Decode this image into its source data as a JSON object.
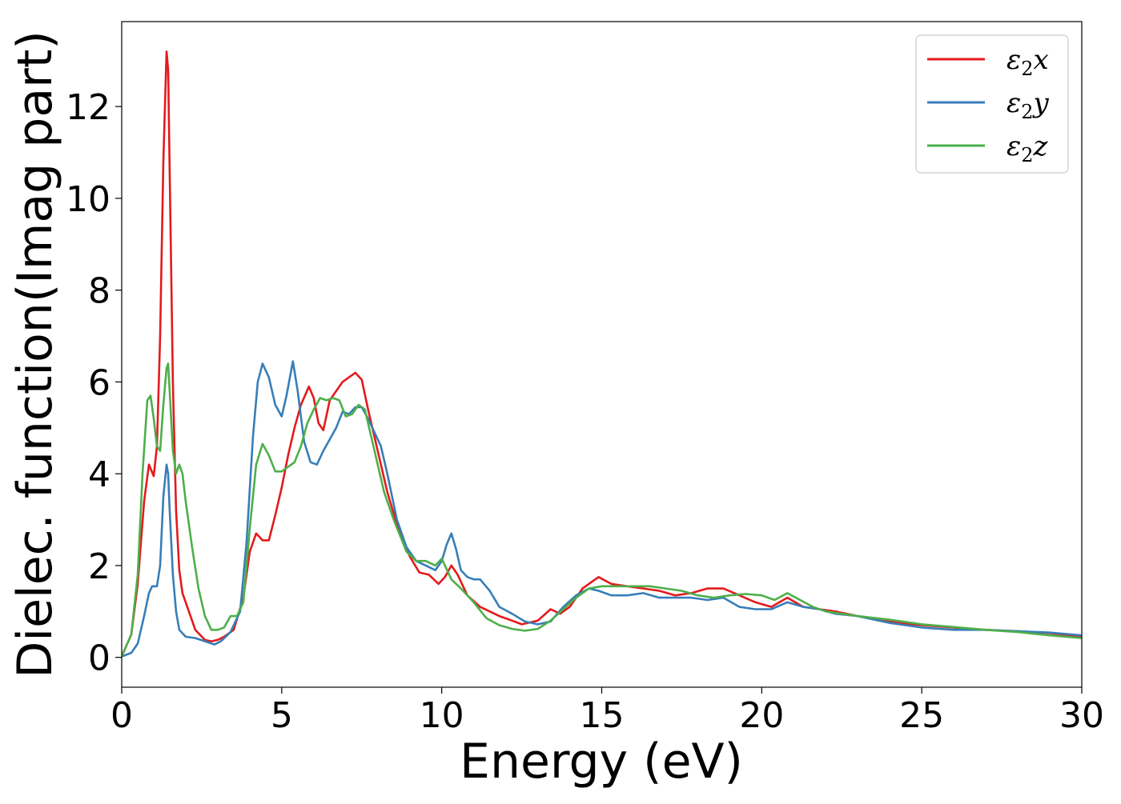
{
  "chart_data": {
    "type": "line",
    "title": "",
    "xlabel": "Energy (eV)",
    "ylabel": "Dielec. function(Imag part)",
    "xlim": [
      0,
      30
    ],
    "ylim": [
      -0.65,
      13.85
    ],
    "xticks": [
      0,
      5,
      10,
      15,
      20,
      25,
      30
    ],
    "yticks": [
      0,
      2,
      4,
      6,
      8,
      10,
      12
    ],
    "grid": false,
    "legend_position": "top-right",
    "series": [
      {
        "name": "ε₂x",
        "legend_base": "ε",
        "legend_sub": "2",
        "legend_suffix": "x",
        "color": "#e41a1c",
        "x": [
          0,
          0.3,
          0.5,
          0.7,
          0.85,
          1.0,
          1.1,
          1.2,
          1.3,
          1.4,
          1.45,
          1.5,
          1.6,
          1.7,
          1.8,
          1.9,
          2.1,
          2.3,
          2.6,
          2.8,
          3.0,
          3.2,
          3.5,
          3.8,
          4.0,
          4.2,
          4.4,
          4.6,
          4.8,
          5.0,
          5.2,
          5.4,
          5.6,
          5.85,
          6.0,
          6.15,
          6.3,
          6.5,
          6.7,
          6.9,
          7.1,
          7.3,
          7.5,
          7.7,
          8.0,
          8.3,
          8.6,
          9.0,
          9.3,
          9.6,
          9.9,
          10.1,
          10.3,
          10.5,
          10.8,
          11.2,
          11.5,
          11.8,
          12.2,
          12.5,
          13.0,
          13.4,
          13.7,
          14.0,
          14.4,
          14.9,
          15.3,
          15.8,
          16.3,
          16.8,
          17.3,
          17.8,
          18.3,
          18.8,
          19.3,
          19.8,
          20.3,
          20.8,
          21.3,
          21.8,
          22.3,
          23.0,
          24.0,
          25.0,
          26.0,
          27.0,
          28.0,
          29.0,
          30.0
        ],
        "y": [
          0.02,
          0.5,
          1.6,
          3.4,
          4.2,
          3.95,
          4.6,
          7.0,
          10.8,
          13.2,
          12.8,
          10.6,
          6.0,
          3.2,
          1.9,
          1.4,
          1.0,
          0.6,
          0.38,
          0.35,
          0.38,
          0.45,
          0.6,
          1.3,
          2.3,
          2.7,
          2.55,
          2.55,
          3.1,
          3.7,
          4.4,
          5.0,
          5.5,
          5.9,
          5.65,
          5.1,
          4.95,
          5.6,
          5.8,
          6.0,
          6.1,
          6.2,
          6.05,
          5.4,
          4.5,
          3.6,
          2.9,
          2.2,
          1.85,
          1.8,
          1.6,
          1.75,
          2.0,
          1.8,
          1.35,
          1.1,
          1.0,
          0.9,
          0.8,
          0.72,
          0.8,
          1.05,
          0.95,
          1.1,
          1.5,
          1.75,
          1.6,
          1.55,
          1.5,
          1.45,
          1.35,
          1.4,
          1.5,
          1.5,
          1.35,
          1.2,
          1.1,
          1.3,
          1.1,
          1.05,
          1.0,
          0.9,
          0.78,
          0.7,
          0.65,
          0.6,
          0.57,
          0.53,
          0.45
        ]
      },
      {
        "name": "ε₂y",
        "legend_base": "ε",
        "legend_sub": "2",
        "legend_suffix": "y",
        "color": "#377eb8",
        "x": [
          0,
          0.3,
          0.5,
          0.7,
          0.85,
          0.95,
          1.1,
          1.2,
          1.3,
          1.4,
          1.45,
          1.5,
          1.6,
          1.7,
          1.8,
          2.0,
          2.3,
          2.6,
          2.9,
          3.1,
          3.4,
          3.7,
          3.9,
          4.1,
          4.25,
          4.4,
          4.6,
          4.8,
          5.0,
          5.15,
          5.35,
          5.5,
          5.7,
          5.9,
          6.1,
          6.3,
          6.5,
          6.7,
          6.9,
          7.1,
          7.3,
          7.5,
          7.7,
          7.9,
          8.1,
          8.3,
          8.6,
          8.9,
          9.2,
          9.5,
          9.8,
          10.0,
          10.15,
          10.3,
          10.45,
          10.6,
          10.8,
          11.0,
          11.2,
          11.5,
          11.8,
          12.2,
          12.6,
          13.0,
          13.4,
          13.8,
          14.2,
          14.6,
          14.9,
          15.3,
          15.8,
          16.3,
          16.8,
          17.3,
          17.8,
          18.3,
          18.8,
          19.3,
          19.8,
          20.3,
          20.8,
          21.3,
          21.8,
          22.3,
          23.0,
          24.0,
          25.0,
          26.0,
          27.0,
          28.0,
          29.0,
          30.0
        ],
        "y": [
          0.02,
          0.1,
          0.3,
          0.9,
          1.4,
          1.55,
          1.55,
          2.0,
          3.5,
          4.2,
          4.0,
          3.2,
          1.8,
          1.0,
          0.6,
          0.45,
          0.42,
          0.35,
          0.28,
          0.35,
          0.55,
          1.0,
          2.5,
          4.8,
          6.0,
          6.4,
          6.1,
          5.5,
          5.25,
          5.7,
          6.45,
          5.8,
          4.7,
          4.25,
          4.2,
          4.5,
          4.75,
          5.0,
          5.35,
          5.3,
          5.45,
          5.45,
          5.2,
          4.9,
          4.6,
          4.0,
          3.0,
          2.4,
          2.1,
          2.0,
          1.9,
          2.1,
          2.45,
          2.7,
          2.35,
          1.9,
          1.75,
          1.7,
          1.7,
          1.45,
          1.1,
          0.95,
          0.78,
          0.72,
          0.78,
          1.1,
          1.35,
          1.5,
          1.45,
          1.35,
          1.35,
          1.4,
          1.3,
          1.3,
          1.3,
          1.25,
          1.3,
          1.1,
          1.05,
          1.05,
          1.2,
          1.1,
          1.05,
          0.95,
          0.9,
          0.75,
          0.65,
          0.6,
          0.6,
          0.57,
          0.54,
          0.48
        ]
      },
      {
        "name": "ε₂z",
        "legend_base": "ε",
        "legend_sub": "2",
        "legend_suffix": "z",
        "color": "#4daf4a",
        "x": [
          0,
          0.3,
          0.5,
          0.65,
          0.8,
          0.9,
          1.0,
          1.1,
          1.2,
          1.3,
          1.4,
          1.45,
          1.5,
          1.6,
          1.7,
          1.8,
          1.9,
          2.0,
          2.2,
          2.4,
          2.6,
          2.8,
          3.0,
          3.2,
          3.4,
          3.6,
          3.8,
          4.0,
          4.2,
          4.4,
          4.6,
          4.8,
          5.0,
          5.2,
          5.4,
          5.6,
          5.8,
          6.0,
          6.2,
          6.4,
          6.6,
          6.8,
          7.0,
          7.2,
          7.4,
          7.6,
          7.9,
          8.2,
          8.5,
          8.9,
          9.2,
          9.5,
          9.8,
          10.0,
          10.3,
          10.6,
          11.0,
          11.4,
          11.8,
          12.2,
          12.6,
          13.0,
          13.4,
          13.8,
          14.2,
          14.6,
          15.0,
          15.5,
          16.0,
          16.5,
          17.0,
          17.5,
          18.0,
          18.5,
          19.0,
          19.5,
          20.0,
          20.4,
          20.8,
          21.2,
          21.6,
          22.0,
          22.5,
          23.0,
          24.0,
          25.0,
          26.0,
          27.0,
          28.0,
          29.0,
          30.0
        ],
        "y": [
          0.02,
          0.5,
          1.8,
          4.0,
          5.6,
          5.7,
          5.2,
          4.6,
          4.5,
          5.5,
          6.3,
          6.4,
          5.8,
          4.5,
          4.0,
          4.2,
          4.0,
          3.4,
          2.4,
          1.5,
          0.9,
          0.6,
          0.6,
          0.65,
          0.9,
          0.9,
          1.2,
          2.8,
          4.2,
          4.65,
          4.4,
          4.05,
          4.05,
          4.15,
          4.25,
          4.6,
          5.1,
          5.4,
          5.65,
          5.6,
          5.65,
          5.6,
          5.25,
          5.3,
          5.5,
          5.4,
          4.5,
          3.6,
          3.0,
          2.3,
          2.1,
          2.1,
          2.0,
          2.15,
          1.7,
          1.5,
          1.2,
          0.85,
          0.7,
          0.62,
          0.58,
          0.62,
          0.8,
          1.05,
          1.3,
          1.5,
          1.55,
          1.55,
          1.55,
          1.55,
          1.5,
          1.45,
          1.35,
          1.3,
          1.35,
          1.38,
          1.35,
          1.25,
          1.4,
          1.25,
          1.1,
          1.0,
          0.95,
          0.9,
          0.82,
          0.72,
          0.66,
          0.6,
          0.55,
          0.48,
          0.42
        ]
      }
    ]
  }
}
